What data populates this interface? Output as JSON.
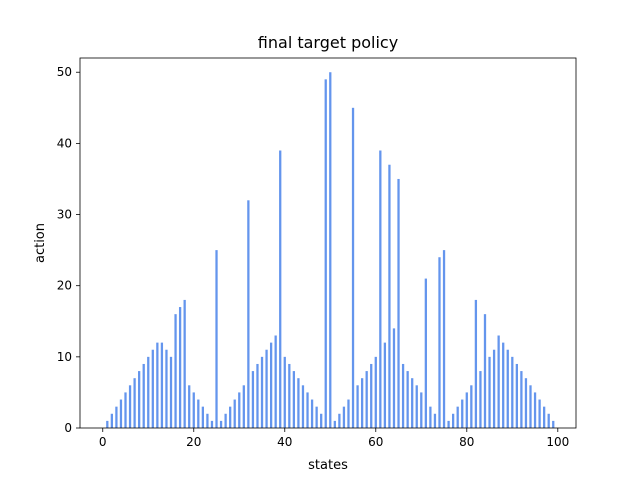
{
  "chart_data": {
    "type": "bar",
    "title": "final target policy",
    "xlabel": "states",
    "ylabel": "action",
    "xlim": [
      -5,
      104
    ],
    "ylim": [
      0,
      52
    ],
    "xticks": [
      0,
      20,
      40,
      60,
      80,
      100
    ],
    "yticks": [
      0,
      10,
      20,
      30,
      40,
      50
    ],
    "grid": false,
    "bar_color": "#6495ED",
    "x": [
      1,
      2,
      3,
      4,
      5,
      6,
      7,
      8,
      9,
      10,
      11,
      12,
      13,
      14,
      15,
      16,
      17,
      18,
      19,
      20,
      21,
      22,
      23,
      24,
      25,
      26,
      27,
      28,
      29,
      30,
      31,
      32,
      33,
      34,
      35,
      36,
      37,
      38,
      39,
      40,
      41,
      42,
      43,
      44,
      45,
      46,
      47,
      48,
      49,
      50,
      51,
      52,
      53,
      54,
      55,
      56,
      57,
      58,
      59,
      60,
      61,
      62,
      63,
      64,
      65,
      66,
      67,
      68,
      69,
      70,
      71,
      72,
      73,
      74,
      75,
      76,
      77,
      78,
      79,
      80,
      81,
      82,
      83,
      84,
      85,
      86,
      87,
      88,
      89,
      90,
      91,
      92,
      93,
      94,
      95,
      96,
      97,
      98,
      99
    ],
    "values": [
      1,
      2,
      3,
      4,
      5,
      6,
      7,
      8,
      9,
      10,
      11,
      12,
      12,
      11,
      10,
      16,
      17,
      18,
      6,
      5,
      4,
      3,
      2,
      1,
      25,
      1,
      2,
      3,
      4,
      5,
      6,
      32,
      8,
      9,
      10,
      11,
      12,
      13,
      39,
      10,
      9,
      8,
      7,
      6,
      5,
      4,
      3,
      2,
      49,
      50,
      1,
      2,
      3,
      4,
      45,
      6,
      7,
      8,
      9,
      10,
      39,
      12,
      37,
      14,
      35,
      9,
      8,
      7,
      6,
      5,
      21,
      3,
      2,
      24,
      25,
      1,
      2,
      3,
      4,
      5,
      6,
      18,
      8,
      16,
      10,
      11,
      13,
      12,
      11,
      10,
      9,
      8,
      7,
      6,
      5,
      4,
      3,
      2,
      1
    ]
  }
}
